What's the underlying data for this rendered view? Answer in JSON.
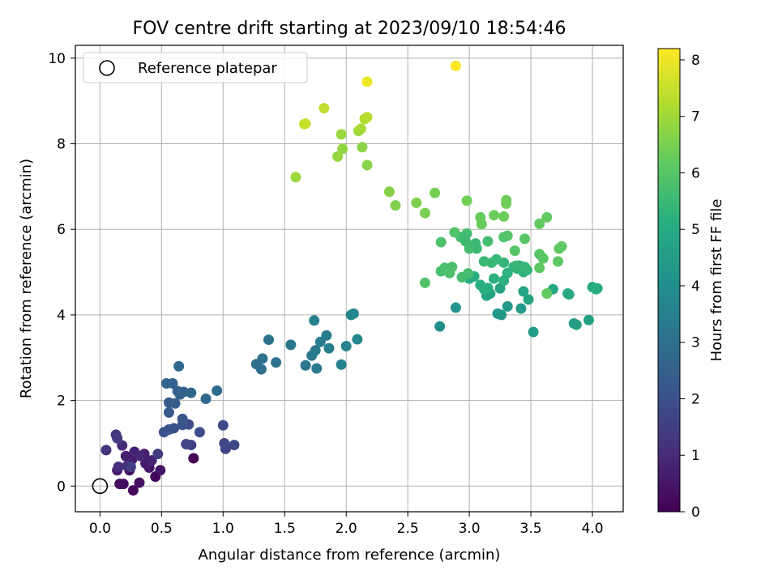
{
  "chart_data": {
    "type": "scatter",
    "title": "FOV centre drift starting at 2023/09/10 18:54:46",
    "xlabel": "Angular distance from reference (arcmin)",
    "ylabel": "Rotation from reference (arcmin)",
    "xlim": [
      -0.2,
      4.25
    ],
    "ylim": [
      -0.6,
      10.3
    ],
    "xticks": [
      0.0,
      0.5,
      1.0,
      1.5,
      2.0,
      2.5,
      3.0,
      3.5,
      4.0
    ],
    "xtick_labels": [
      "0.0",
      "0.5",
      "1.0",
      "1.5",
      "2.0",
      "2.5",
      "3.0",
      "3.5",
      "4.0"
    ],
    "yticks": [
      0,
      2,
      4,
      6,
      8,
      10
    ],
    "ytick_labels": [
      "0",
      "2",
      "4",
      "6",
      "8",
      "10"
    ],
    "grid": true,
    "legend": {
      "position": "upper-left",
      "entries": [
        "Reference platepar"
      ]
    },
    "reference_point": {
      "x": 0.0,
      "y": 0.0,
      "marker": "open-circle",
      "color": "#000000"
    },
    "colorbar": {
      "label": "Hours from first FF file",
      "min": 0,
      "max": 8.2,
      "ticks": [
        0,
        1,
        2,
        3,
        4,
        5,
        6,
        7,
        8
      ],
      "tick_labels": [
        "0",
        "1",
        "2",
        "3",
        "4",
        "5",
        "6",
        "7",
        "8"
      ],
      "colormap": "viridis"
    },
    "series": [
      {
        "color_by": "hours",
        "points": [
          [
            0.76,
            0.65,
            0.05
          ],
          [
            0.45,
            0.22,
            0.12
          ],
          [
            0.27,
            -0.1,
            0.2
          ],
          [
            0.19,
            0.05,
            0.25
          ],
          [
            0.16,
            0.05,
            0.3
          ],
          [
            0.32,
            0.08,
            0.35
          ],
          [
            0.24,
            0.37,
            0.4
          ],
          [
            0.4,
            0.43,
            0.45
          ],
          [
            0.49,
            0.37,
            0.5
          ],
          [
            0.14,
            0.37,
            0.55
          ],
          [
            0.37,
            0.53,
            0.6
          ],
          [
            0.26,
            0.62,
            0.65
          ],
          [
            0.21,
            0.7,
            0.7
          ],
          [
            0.36,
            0.75,
            0.75
          ],
          [
            0.28,
            0.8,
            0.8
          ],
          [
            0.42,
            0.6,
            0.85
          ],
          [
            0.33,
            0.7,
            0.9
          ],
          [
            0.18,
            0.95,
            1.0
          ],
          [
            0.15,
            0.45,
            1.05
          ],
          [
            0.22,
            0.47,
            1.1
          ],
          [
            0.05,
            0.84,
            1.2
          ],
          [
            0.13,
            1.2,
            1.3
          ],
          [
            0.14,
            1.12,
            1.35
          ],
          [
            0.47,
            0.75,
            1.4
          ],
          [
            0.25,
            0.45,
            1.5
          ],
          [
            0.74,
            0.96,
            1.6
          ],
          [
            0.7,
            0.98,
            1.65
          ],
          [
            1.02,
            0.87,
            1.7
          ],
          [
            1.01,
            1.0,
            1.75
          ],
          [
            1.09,
            0.96,
            1.8
          ],
          [
            1.0,
            1.42,
            1.85
          ],
          [
            0.72,
            1.44,
            1.9
          ],
          [
            0.81,
            1.26,
            1.95
          ],
          [
            0.52,
            1.26,
            2.0
          ],
          [
            0.56,
            1.32,
            2.05
          ],
          [
            0.6,
            1.35,
            2.1
          ],
          [
            0.67,
            1.43,
            2.15
          ],
          [
            0.67,
            1.57,
            2.2
          ],
          [
            0.56,
            1.72,
            2.3
          ],
          [
            0.56,
            1.95,
            2.35
          ],
          [
            0.61,
            1.93,
            2.4
          ],
          [
            0.65,
            2.14,
            2.45
          ],
          [
            0.68,
            2.2,
            2.5
          ],
          [
            0.63,
            2.22,
            2.55
          ],
          [
            0.59,
            2.4,
            2.6
          ],
          [
            0.54,
            2.4,
            2.65
          ],
          [
            0.74,
            2.18,
            2.7
          ],
          [
            0.86,
            2.04,
            2.75
          ],
          [
            0.64,
            2.8,
            2.8
          ],
          [
            0.95,
            2.23,
            2.85
          ],
          [
            1.27,
            2.85,
            2.9
          ],
          [
            1.31,
            2.73,
            2.95
          ],
          [
            1.32,
            2.98,
            3.0
          ],
          [
            1.43,
            2.89,
            3.05
          ],
          [
            1.37,
            3.42,
            3.1
          ],
          [
            1.55,
            3.3,
            3.15
          ],
          [
            1.67,
            2.82,
            3.2
          ],
          [
            1.72,
            3.05,
            3.25
          ],
          [
            1.76,
            2.75,
            3.3
          ],
          [
            1.75,
            3.17,
            3.35
          ],
          [
            1.79,
            3.37,
            3.4
          ],
          [
            1.84,
            3.52,
            3.45
          ],
          [
            1.86,
            3.22,
            3.5
          ],
          [
            1.74,
            3.87,
            3.55
          ],
          [
            1.96,
            2.84,
            3.6
          ],
          [
            2.0,
            3.27,
            3.65
          ],
          [
            2.04,
            4.0,
            3.7
          ],
          [
            2.06,
            4.03,
            3.75
          ],
          [
            2.09,
            3.43,
            3.8
          ],
          [
            2.76,
            3.73,
            4.0
          ],
          [
            2.89,
            4.17,
            4.2
          ],
          [
            3.23,
            4.03,
            4.3
          ],
          [
            3.26,
            4.0,
            4.35
          ],
          [
            3.31,
            4.2,
            4.4
          ],
          [
            3.42,
            4.15,
            4.45
          ],
          [
            3.52,
            3.6,
            4.5
          ],
          [
            3.85,
            3.8,
            4.55
          ],
          [
            3.87,
            3.77,
            4.6
          ],
          [
            3.97,
            3.88,
            4.65
          ],
          [
            3.14,
            4.45,
            4.7
          ],
          [
            3.17,
            4.5,
            4.72
          ],
          [
            3.25,
            4.62,
            4.75
          ],
          [
            3.44,
            4.55,
            4.78
          ],
          [
            3.48,
            4.36,
            4.8
          ],
          [
            3.68,
            4.6,
            4.85
          ],
          [
            3.8,
            4.5,
            4.9
          ],
          [
            3.81,
            4.48,
            4.92
          ],
          [
            4.0,
            4.65,
            4.95
          ],
          [
            4.04,
            4.62,
            5.0
          ],
          [
            4.03,
            4.6,
            5.02
          ],
          [
            3.0,
            4.85,
            5.05
          ],
          [
            3.04,
            4.9,
            5.08
          ],
          [
            3.09,
            4.7,
            5.1
          ],
          [
            3.12,
            4.6,
            5.12
          ],
          [
            3.15,
            4.63,
            5.15
          ],
          [
            3.2,
            4.85,
            5.18
          ],
          [
            3.28,
            4.8,
            5.2
          ],
          [
            3.31,
            4.98,
            5.22
          ],
          [
            3.36,
            5.12,
            5.25
          ],
          [
            3.39,
            5.08,
            5.28
          ],
          [
            3.41,
            5.15,
            5.3
          ],
          [
            3.44,
            5.0,
            5.32
          ],
          [
            3.47,
            5.05,
            5.35
          ],
          [
            3.45,
            5.12,
            5.38
          ],
          [
            3.38,
            5.15,
            5.4
          ],
          [
            3.28,
            5.22,
            5.42
          ],
          [
            3.22,
            5.3,
            5.45
          ],
          [
            3.18,
            5.22,
            5.48
          ],
          [
            3.12,
            5.25,
            5.5
          ],
          [
            3.06,
            5.55,
            5.52
          ],
          [
            3.05,
            5.67,
            5.55
          ],
          [
            2.97,
            5.72,
            5.58
          ],
          [
            2.93,
            5.82,
            5.6
          ],
          [
            2.98,
            5.9,
            5.62
          ],
          [
            3.0,
            5.55,
            5.65
          ],
          [
            3.15,
            5.72,
            5.68
          ],
          [
            2.94,
            4.88,
            5.7
          ],
          [
            2.99,
            4.97,
            5.72
          ],
          [
            2.77,
            5.02,
            5.75
          ],
          [
            2.8,
            5.1,
            5.78
          ],
          [
            2.84,
            4.98,
            5.8
          ],
          [
            2.86,
            5.12,
            5.82
          ],
          [
            2.77,
            5.7,
            5.85
          ],
          [
            2.88,
            5.93,
            5.88
          ],
          [
            2.64,
            4.75,
            5.9
          ],
          [
            3.28,
            5.82,
            5.92
          ],
          [
            3.31,
            5.85,
            5.95
          ],
          [
            3.37,
            5.5,
            5.98
          ],
          [
            3.45,
            5.78,
            6.0
          ],
          [
            3.57,
            5.42,
            6.02
          ],
          [
            3.6,
            5.32,
            6.05
          ],
          [
            3.57,
            5.1,
            6.08
          ],
          [
            3.72,
            5.25,
            6.1
          ],
          [
            3.73,
            5.55,
            6.12
          ],
          [
            3.75,
            5.6,
            6.15
          ],
          [
            3.63,
            4.5,
            6.18
          ],
          [
            3.57,
            6.13,
            6.2
          ],
          [
            3.63,
            6.28,
            6.22
          ],
          [
            3.09,
            6.28,
            6.25
          ],
          [
            3.1,
            6.12,
            6.28
          ],
          [
            3.2,
            6.33,
            6.3
          ],
          [
            3.28,
            6.3,
            6.32
          ],
          [
            3.3,
            6.68,
            6.35
          ],
          [
            3.3,
            6.6,
            6.38
          ],
          [
            2.98,
            6.67,
            6.4
          ],
          [
            2.72,
            6.85,
            6.45
          ],
          [
            2.64,
            6.38,
            6.5
          ],
          [
            2.57,
            6.62,
            6.55
          ],
          [
            2.4,
            6.56,
            6.6
          ],
          [
            2.35,
            6.88,
            6.65
          ],
          [
            2.17,
            7.5,
            6.7
          ],
          [
            2.13,
            7.92,
            6.75
          ],
          [
            1.97,
            7.88,
            6.8
          ],
          [
            1.93,
            7.7,
            6.85
          ],
          [
            1.96,
            8.22,
            6.9
          ],
          [
            1.59,
            7.22,
            6.95
          ],
          [
            2.1,
            8.3,
            7.0
          ],
          [
            2.12,
            8.35,
            7.1
          ],
          [
            2.15,
            8.58,
            7.2
          ],
          [
            2.17,
            8.62,
            7.3
          ],
          [
            1.82,
            8.83,
            7.4
          ],
          [
            1.67,
            8.47,
            7.45
          ],
          [
            1.66,
            8.46,
            7.5
          ],
          [
            2.17,
            9.45,
            8.0
          ],
          [
            2.89,
            9.82,
            8.15
          ]
        ]
      }
    ]
  }
}
